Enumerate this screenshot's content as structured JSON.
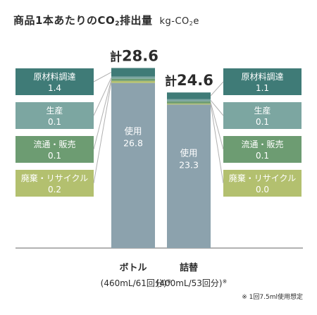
{
  "title_prefix": "商品1本あたりのCO",
  "title_sub": "2",
  "title_suffix": "排出量",
  "unit_prefix": "kg-CO",
  "unit_sub": "2",
  "unit_suffix": "e",
  "total_prefix": "計",
  "note": "※ 1回7.5ml使用想定",
  "colors": {
    "raw_material": "#3f7b77",
    "production": "#7ca6a1",
    "distribution": "#6d9c72",
    "disposal": "#b3c06f",
    "use": "#8ca2ad",
    "connector": "#b0b0b0",
    "axis": "#666666"
  },
  "chart_data": {
    "type": "bar",
    "stacked": true,
    "categories": [
      "ボトル",
      "詰替"
    ],
    "category_subtitles": [
      "(460mL/61回分)",
      "(400mL/53回分)"
    ],
    "category_marks": [
      "※",
      "※"
    ],
    "totals": [
      28.6,
      24.6
    ],
    "stages": [
      "原材料調達",
      "生産",
      "流通・販売",
      "廃棄・リサイクル",
      "使用"
    ],
    "series": [
      {
        "name": "原材料調達",
        "values": [
          1.4,
          1.1
        ],
        "labels": [
          "1.4",
          "1.1"
        ]
      },
      {
        "name": "生産",
        "values": [
          0.1,
          0.1
        ],
        "labels": [
          "0.1",
          "0.1"
        ]
      },
      {
        "name": "流通・販売",
        "values": [
          0.1,
          0.1
        ],
        "labels": [
          "0.1",
          "0.1"
        ]
      },
      {
        "name": "廃棄・リサイクル",
        "values": [
          0.2,
          0.0
        ],
        "labels": [
          "0.2",
          "0.0"
        ]
      },
      {
        "name": "使用",
        "values": [
          26.8,
          23.3
        ],
        "labels": [
          "26.8",
          "23.3"
        ]
      }
    ],
    "ylim": [
      0,
      28.6
    ]
  }
}
